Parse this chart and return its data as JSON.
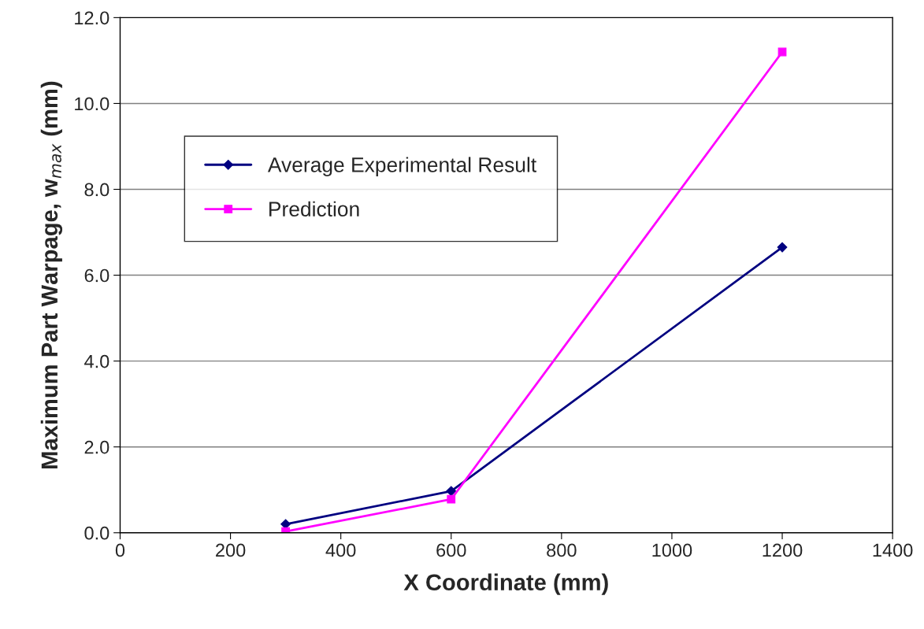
{
  "chart_data": {
    "type": "line",
    "xlabel": "X Coordinate (mm)",
    "ylabel": "Maximum Part Warpage, w$_{max}$ (mm)",
    "x": [
      300,
      600,
      1200
    ],
    "series": [
      {
        "name": "Average Experimental Result",
        "color": "#000080",
        "values": [
          0.2,
          0.97,
          6.65
        ],
        "marker": "diamond"
      },
      {
        "name": "Prediction",
        "color": "#ff00ff",
        "values": [
          0.03,
          0.78,
          11.2
        ],
        "marker": "square"
      }
    ],
    "xlim": [
      0,
      1400
    ],
    "xticks": [
      0,
      200,
      400,
      600,
      800,
      1000,
      1200,
      1400
    ],
    "ylim": [
      0,
      12
    ],
    "yticks": [
      {
        "value": 0,
        "label": "0.0"
      },
      {
        "value": 2,
        "label": "2.0"
      },
      {
        "value": 4,
        "label": "4.0"
      },
      {
        "value": 6,
        "label": "6.0"
      },
      {
        "value": 8,
        "label": "8.0"
      },
      {
        "value": 10,
        "label": "10.0"
      },
      {
        "value": 12,
        "label": "12.0"
      }
    ],
    "grid": "y",
    "legend": "top left",
    "line_style": "solid"
  }
}
